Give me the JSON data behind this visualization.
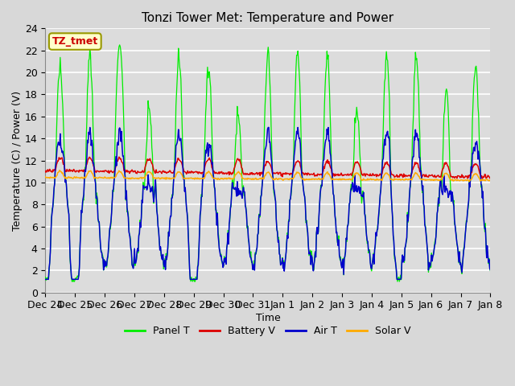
{
  "title": "Tonzi Tower Met: Temperature and Power",
  "xlabel": "Time",
  "ylabel": "Temperature (C) / Power (V)",
  "annotation": "TZ_tmet",
  "ylim": [
    0,
    24
  ],
  "n_days": 15,
  "tick_labels": [
    "Dec 24",
    "Dec 25",
    "Dec 26",
    "Dec 27",
    "Dec 28",
    "Dec 29",
    "Dec 30",
    "Dec 31",
    "Jan 1",
    "Jan 2",
    "Jan 3",
    "Jan 4",
    "Jan 5",
    "Jan 6",
    "Jan 7",
    "Jan 8"
  ],
  "fig_bg_color": "#d8d8d8",
  "plot_bg_color": "#dcdcdc",
  "grid_color": "#ffffff",
  "colors": {
    "panel_t": "#00ee00",
    "battery_v": "#dd0000",
    "air_t": "#0000cc",
    "solar_v": "#ffaa00"
  },
  "legend_labels": [
    "Panel T",
    "Battery V",
    "Air T",
    "Solar V"
  ],
  "title_fontsize": 11,
  "axis_fontsize": 9,
  "legend_fontsize": 9,
  "seed": 7
}
